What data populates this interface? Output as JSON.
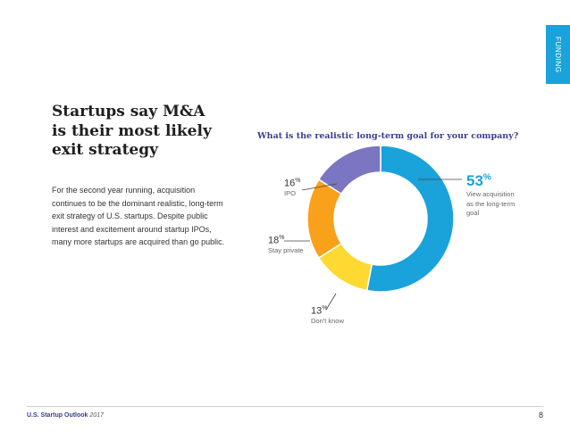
{
  "side_tab": "FUNDING",
  "headline": [
    "Startups say M&A",
    "is their most likely",
    "exit strategy"
  ],
  "body": [
    "For the second year running, acquisition",
    "continues to be the dominant realistic, long-term",
    "exit strategy of U.S. startups. Despite public",
    "interest and excitement around startup IPOs,",
    "many more startups are acquired than go public."
  ],
  "chart_data": {
    "type": "pie",
    "donut": true,
    "title": "What is the realistic long-term goal for your company?",
    "slices": [
      {
        "value": 53,
        "pct": "53",
        "unit": "%",
        "label": [
          "View acquisition",
          "as the long-term",
          "goal"
        ],
        "color": "#1aa2db"
      },
      {
        "value": 13,
        "pct": "13",
        "unit": "%",
        "label": [
          "Don't know"
        ],
        "color": "#fdd931"
      },
      {
        "value": 18,
        "pct": "18",
        "unit": "%",
        "label": [
          "Stay private"
        ],
        "color": "#f9a11b"
      },
      {
        "value": 16,
        "pct": "16",
        "unit": "%",
        "label": [
          "IPO"
        ],
        "color": "#7b76c1"
      }
    ]
  },
  "footer": {
    "title": "U.S. Startup Outlook",
    "year": "2017",
    "page": "8"
  }
}
